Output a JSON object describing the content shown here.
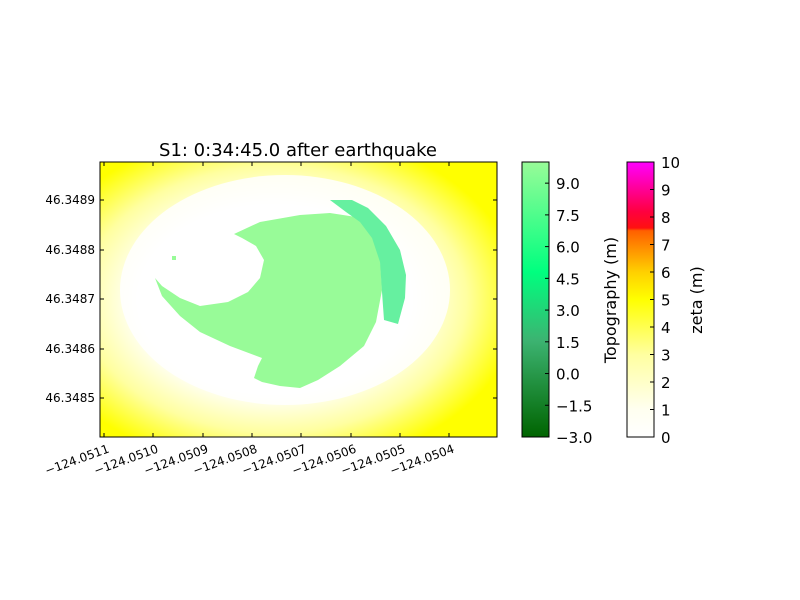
{
  "chart_data": {
    "type": "heatmap",
    "title": "S1: 0:34:45.0 after earthquake",
    "x_ticks": [
      "−124.0511",
      "−124.0510",
      "−124.0509",
      "−124.0508",
      "−124.0507",
      "−124.0506",
      "−124.0505",
      "−124.0504"
    ],
    "y_ticks": [
      "46.3489",
      "46.3488",
      "46.3487",
      "46.3486",
      "46.3485"
    ],
    "topography_colorbar": {
      "label": "Topography (m)",
      "ticks": [
        "9.0",
        "7.5",
        "6.0",
        "4.5",
        "3.0",
        "1.5",
        "0.0",
        "−1.5",
        "−3.0"
      ],
      "range": [
        -3.0,
        10.0
      ],
      "colors": [
        "#006400",
        "#3cb371",
        "#00ff7f",
        "#98fb98"
      ]
    },
    "zeta_colorbar": {
      "label": "zeta (m)",
      "ticks": [
        "10",
        "9",
        "8",
        "7",
        "6",
        "5",
        "4",
        "3",
        "2",
        "1",
        "0"
      ],
      "range": [
        0,
        10
      ],
      "colors": [
        "#ffffff",
        "#ffff00",
        "#ff4500",
        "#ff00ff"
      ]
    },
    "field_colors": {
      "water": "#ffff00",
      "shallow_water": "#ffffff",
      "land_low": "#98fb98",
      "land_mid": "#66f0a0"
    }
  }
}
